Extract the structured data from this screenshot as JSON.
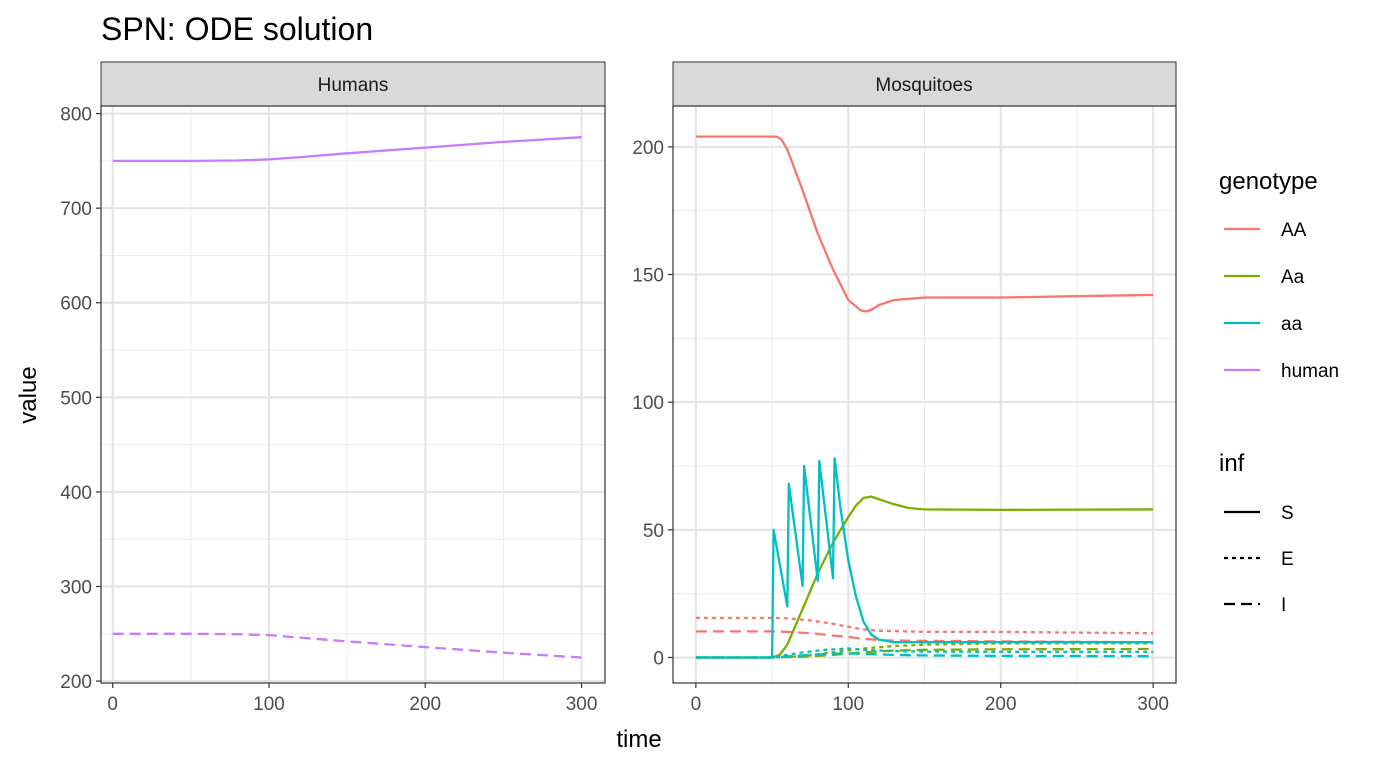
{
  "chart_data": {
    "title": "SPN: ODE solution",
    "xlabel": "time",
    "ylabel": "value",
    "type": "line",
    "grid": true,
    "legend_position": "right",
    "colors": {
      "AA": "#F8766D",
      "Aa": "#7CAE00",
      "aa": "#00BFC4",
      "human": "#C77CFF"
    },
    "legends": {
      "color": {
        "title": "genotype",
        "entries": [
          "AA",
          "Aa",
          "aa",
          "human"
        ]
      },
      "linetype": {
        "title": "inf",
        "entries": [
          "S",
          "E",
          "I"
        ]
      }
    },
    "panels": [
      {
        "strip": "Humans",
        "xlim": [
          -7.5,
          315
        ],
        "ylim": [
          198,
          808
        ],
        "xticks": [
          0,
          100,
          200,
          300
        ],
        "xtick_labels": [
          "0",
          "100",
          "200",
          "300"
        ],
        "yticks": [
          200,
          300,
          400,
          500,
          600,
          700,
          800
        ],
        "ytick_labels": [
          "200",
          "300",
          "400",
          "500",
          "600",
          "700",
          "800"
        ],
        "series": [
          {
            "genotype": "human",
            "inf": "S",
            "x": [
              0,
              50,
              80,
              100,
              120,
              150,
              200,
              250,
              300
            ],
            "y": [
              750,
              750,
              750.4,
              751.5,
              754,
              758,
              764,
              770,
              775
            ]
          },
          {
            "genotype": "human",
            "inf": "I",
            "x": [
              0,
              50,
              80,
              100,
              120,
              150,
              200,
              250,
              300
            ],
            "y": [
              250,
              250,
              249.6,
              248.5,
              246,
              242,
              236,
              230,
              225
            ]
          }
        ]
      },
      {
        "strip": "Mosquitoes",
        "xlim": [
          -15,
          315
        ],
        "ylim": [
          -10,
          216
        ],
        "xticks": [
          0,
          100,
          200,
          300
        ],
        "xtick_labels": [
          "0",
          "100",
          "200",
          "300"
        ],
        "yticks": [
          0,
          50,
          100,
          150,
          200
        ],
        "ytick_labels": [
          "0",
          "50",
          "100",
          "150",
          "200"
        ],
        "series": [
          {
            "genotype": "AA",
            "inf": "S",
            "x": [
              0,
              50,
              53,
              56,
              60,
              70,
              80,
              90,
              100,
              108,
              112,
              116,
              120,
              130,
              140,
              150,
              175,
              200,
              250,
              300
            ],
            "y": [
              204,
              204,
              204,
              203,
              199,
              183,
              166,
              152,
              140,
              136,
              135.5,
              136.5,
              138,
              140,
              140.5,
              141,
              141,
              141,
              141.5,
              142
            ]
          },
          {
            "genotype": "AA",
            "inf": "E",
            "x": [
              0,
              50,
              60,
              75,
              90,
              100,
              110,
              120,
              150,
              200,
              300
            ],
            "y": [
              15.5,
              15.5,
              15.3,
              14.5,
              13.2,
              12,
              11,
              10.5,
              10,
              10,
              9.5
            ]
          },
          {
            "genotype": "AA",
            "inf": "I",
            "x": [
              0,
              50,
              60,
              75,
              90,
              100,
              110,
              125,
              150,
              200,
              300
            ],
            "y": [
              10.2,
              10.2,
              10,
              9.5,
              8.6,
              8,
              7.3,
              6.7,
              6.5,
              6.3,
              6
            ]
          },
          {
            "genotype": "Aa",
            "inf": "S",
            "x": [
              0,
              50,
              55,
              60,
              70,
              80,
              90,
              100,
              105,
              110,
              115,
              120,
              130,
              140,
              150,
              200,
              250,
              300
            ],
            "y": [
              0,
              0,
              1,
              5,
              19,
              33,
              45,
              55,
              59.5,
              62.5,
              63,
              62,
              60,
              58.5,
              58,
              57.8,
              57.9,
              58
            ]
          },
          {
            "genotype": "Aa",
            "inf": "E",
            "x": [
              0,
              50,
              70,
              90,
              110,
              130,
              150,
              200,
              300
            ],
            "y": [
              0,
              0,
              0.5,
              2,
              3.5,
              4.5,
              5,
              5.5,
              5.5
            ]
          },
          {
            "genotype": "Aa",
            "inf": "I",
            "x": [
              0,
              50,
              70,
              90,
              110,
              130,
              150,
              200,
              300
            ],
            "y": [
              0,
              0,
              0.3,
              1,
              2,
              2.7,
              3,
              3.2,
              3.3
            ]
          },
          {
            "genotype": "aa",
            "inf": "S",
            "x": [
              0,
              50,
              51,
              60,
              61,
              70,
              71,
              80,
              81,
              90,
              91,
              95,
              100,
              105,
              110,
              115,
              120,
              130,
              150,
              200,
              300
            ],
            "y": [
              0,
              0,
              50,
              20,
              68,
              28,
              75,
              30,
              77,
              31,
              78,
              58,
              38,
              24,
              14,
              9,
              7,
              6,
              6,
              6,
              6
            ]
          },
          {
            "genotype": "aa",
            "inf": "E",
            "x": [
              0,
              50,
              70,
              85,
              100,
              110,
              130,
              150,
              200,
              300
            ],
            "y": [
              0,
              0,
              2,
              3,
              3.5,
              3,
              2.5,
              2.3,
              2.2,
              2.2
            ]
          },
          {
            "genotype": "aa",
            "inf": "I",
            "x": [
              0,
              50,
              70,
              90,
              100,
              110,
              130,
              150,
              200,
              300
            ],
            "y": [
              0,
              0,
              0.8,
              1.5,
              1.6,
              1.4,
              1,
              0.8,
              0.6,
              0.5
            ]
          }
        ]
      }
    ]
  }
}
